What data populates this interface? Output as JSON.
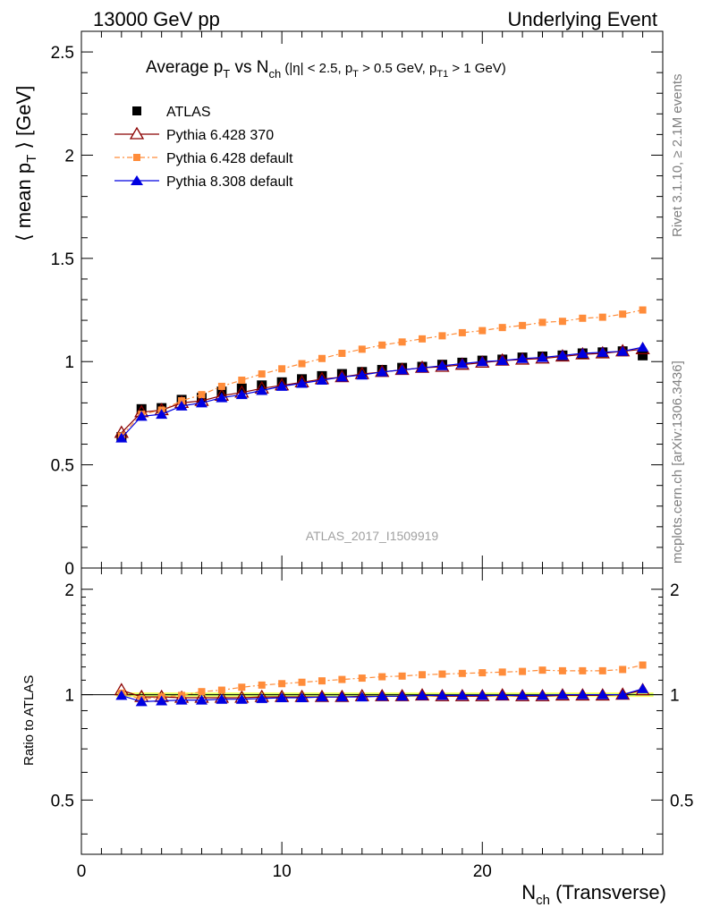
{
  "header": {
    "left": "13000 GeV pp",
    "right": "Underlying Event"
  },
  "side_labels": {
    "top": "Rivet 3.1.10, ≥ 2.1M events",
    "bottom": "mcplots.cern.ch [arXiv:1306.3436]"
  },
  "colors": {
    "atlas": "#000000",
    "p6_370": "#8b0000",
    "p6_default": "#ff8c3a",
    "p8_default": "#0000e0",
    "band_yellow": "#ffff66",
    "band_green": "#99ff66"
  },
  "chart_data": [
    {
      "type": "scatter",
      "panel": "main",
      "title": "Average p_T vs N_ch (|η| < 2.5, p_T > 0.5 GeV, p_T1 > 1 GeV)",
      "title_parts": {
        "a": "Average p",
        "a_sub": "T",
        "b": " vs N",
        "b_sub": "ch",
        "c": " (|η| < 2.5, p",
        "c_sub": "T",
        "d": " > 0.5 GeV, p",
        "d_sub": "T1",
        "e": " > 1 GeV)"
      },
      "ylabel": "⟨ mean p_T ⟩ [GeV]",
      "ylabel_parts": {
        "a": "⟨ mean p",
        "a_sub": "T",
        "b": " ⟩ [GeV]"
      },
      "watermark": "ATLAS_2017_I1509919",
      "xlim": [
        0,
        29
      ],
      "ylim": [
        0,
        2.6
      ],
      "yticks": [
        "0",
        "0.5",
        "1",
        "1.5",
        "2",
        "2.5"
      ],
      "legend_placement": "top-left",
      "x": [
        2,
        3,
        4,
        5,
        6,
        7,
        8,
        9,
        10,
        11,
        12,
        13,
        14,
        15,
        16,
        17,
        18,
        19,
        20,
        21,
        22,
        23,
        24,
        25,
        26,
        27,
        28
      ],
      "series": [
        {
          "name": "ATLAS",
          "key": "atlas",
          "values": [
            0.635,
            0.77,
            0.775,
            0.815,
            0.825,
            0.855,
            0.87,
            0.885,
            0.9,
            0.915,
            0.93,
            0.94,
            0.95,
            0.96,
            0.97,
            0.975,
            0.985,
            0.995,
            1.005,
            1.01,
            1.02,
            1.025,
            1.03,
            1.04,
            1.045,
            1.05,
            1.03
          ]
        },
        {
          "name": "Pythia 6.428 370",
          "key": "p6_370",
          "values": [
            0.655,
            0.755,
            0.765,
            0.8,
            0.81,
            0.835,
            0.85,
            0.87,
            0.885,
            0.9,
            0.915,
            0.925,
            0.94,
            0.95,
            0.96,
            0.97,
            0.975,
            0.985,
            0.995,
            1.005,
            1.01,
            1.015,
            1.025,
            1.035,
            1.04,
            1.05,
            1.06
          ]
        },
        {
          "name": "Pythia 6.428 default",
          "key": "p6_default",
          "values": [
            0.64,
            0.745,
            0.765,
            0.81,
            0.84,
            0.88,
            0.91,
            0.94,
            0.965,
            0.99,
            1.015,
            1.04,
            1.06,
            1.08,
            1.095,
            1.11,
            1.125,
            1.14,
            1.15,
            1.165,
            1.175,
            1.19,
            1.195,
            1.21,
            1.215,
            1.23,
            1.25
          ]
        },
        {
          "name": "Pythia 8.308 default",
          "key": "p8_default",
          "values": [
            0.63,
            0.735,
            0.745,
            0.785,
            0.8,
            0.825,
            0.84,
            0.86,
            0.88,
            0.895,
            0.91,
            0.925,
            0.935,
            0.95,
            0.96,
            0.97,
            0.98,
            0.99,
            1.0,
            1.005,
            1.015,
            1.02,
            1.03,
            1.04,
            1.045,
            1.05,
            1.07
          ]
        }
      ]
    },
    {
      "type": "scatter",
      "panel": "ratio",
      "xlabel": "N_ch (Transverse)",
      "xlabel_parts": {
        "a": "N",
        "a_sub": "ch",
        "b": " (Transverse)"
      },
      "ylabel": "Ratio to ATLAS",
      "xlim": [
        0,
        29
      ],
      "ylim": [
        0.35,
        2.3
      ],
      "yticks": [
        "0.5",
        "1",
        "2"
      ],
      "xticks": [
        "0",
        "10",
        "20"
      ],
      "x": [
        2,
        3,
        4,
        5,
        6,
        7,
        8,
        9,
        10,
        11,
        12,
        13,
        14,
        15,
        16,
        17,
        18,
        19,
        20,
        21,
        22,
        23,
        24,
        25,
        26,
        27,
        28
      ],
      "series": [
        {
          "name": "Pythia 6.428 370",
          "key": "p6_370",
          "values": [
            1.03,
            0.985,
            0.985,
            0.98,
            0.98,
            0.98,
            0.98,
            0.985,
            0.985,
            0.985,
            0.985,
            0.985,
            0.99,
            0.99,
            0.99,
            0.995,
            0.99,
            0.99,
            0.99,
            0.995,
            0.99,
            0.99,
            0.995,
            0.995,
            0.995,
            1.0,
            1.03
          ]
        },
        {
          "name": "Pythia 6.428 default",
          "key": "p6_default",
          "values": [
            1.01,
            0.97,
            0.985,
            0.995,
            1.02,
            1.03,
            1.05,
            1.065,
            1.075,
            1.085,
            1.095,
            1.105,
            1.115,
            1.125,
            1.13,
            1.14,
            1.145,
            1.15,
            1.155,
            1.16,
            1.165,
            1.175,
            1.17,
            1.17,
            1.17,
            1.18,
            1.215
          ]
        },
        {
          "name": "Pythia 8.308 default",
          "key": "p8_default",
          "values": [
            0.995,
            0.955,
            0.96,
            0.965,
            0.965,
            0.97,
            0.97,
            0.975,
            0.98,
            0.98,
            0.985,
            0.985,
            0.985,
            0.99,
            0.99,
            0.995,
            0.995,
            0.995,
            0.995,
            0.995,
            0.995,
            0.995,
            1.0,
            1.0,
            1.0,
            1.0,
            1.04
          ]
        }
      ]
    }
  ]
}
